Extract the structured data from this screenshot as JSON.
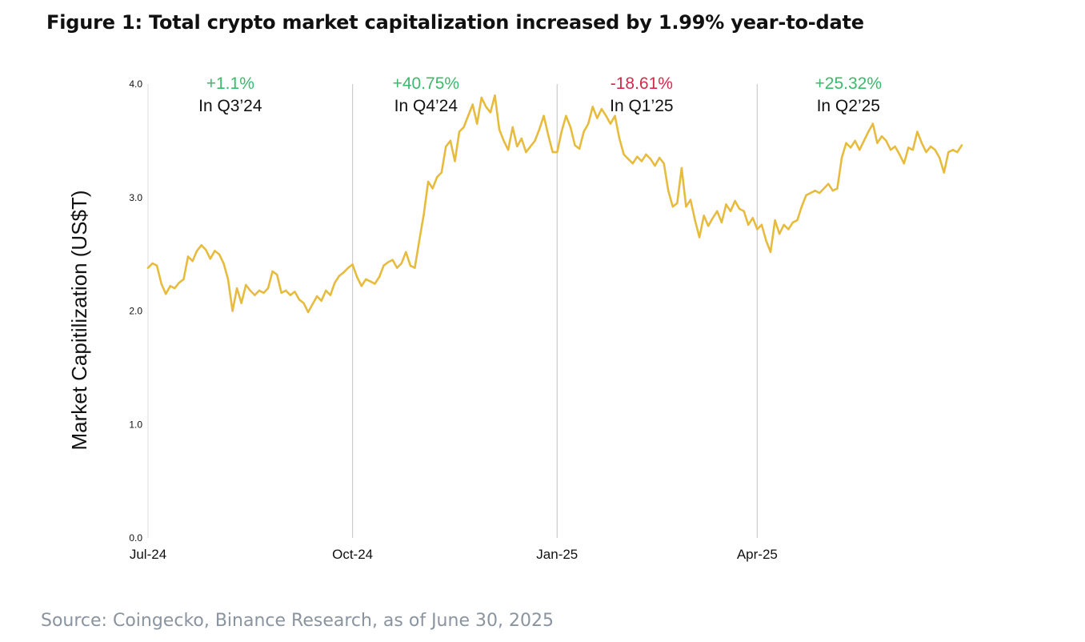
{
  "title": "Figure 1: Total crypto market capitalization increased by 1.99% year-to-date",
  "source": "Source: Coingecko, Binance Research, as of June 30, 2025",
  "colors": {
    "line": "#E7BC3E",
    "positive": "#3DB86C",
    "negative": "#D02C4A",
    "divider": "#CCCCCC",
    "text": "#111111"
  },
  "chart_data": {
    "type": "line",
    "title": "Figure 1: Total crypto market capitalization increased by 1.99% year-to-date",
    "xlabel": "",
    "ylabel": "Market Capitilization (US$T)",
    "ylim": [
      0,
      4
    ],
    "xlim": [
      0,
      183
    ],
    "yticks": [
      {
        "value": 0,
        "label": "0.0"
      },
      {
        "value": 1,
        "label": "1.0"
      },
      {
        "value": 2,
        "label": "2.0"
      },
      {
        "value": 3,
        "label": "3.0"
      },
      {
        "value": 4,
        "label": "4.0"
      }
    ],
    "xticks": [
      {
        "value": 0,
        "label": "Jul-24"
      },
      {
        "value": 46,
        "label": "Oct-24"
      },
      {
        "value": 92,
        "label": "Jan-25"
      },
      {
        "value": 137,
        "label": "Apr-25"
      }
    ],
    "dividers": [
      0,
      46,
      92,
      137
    ],
    "annotations": [
      {
        "x": 18.5,
        "change": "+1.1%",
        "quarter": "In Q3’24",
        "sign": "positive"
      },
      {
        "x": 62.5,
        "change": "+40.75%",
        "quarter": "In Q4’24",
        "sign": "positive"
      },
      {
        "x": 111,
        "change": "-18.61%",
        "quarter": "In Q1’25",
        "sign": "negative"
      },
      {
        "x": 157.5,
        "change": "+25.32%",
        "quarter": "In Q2’25",
        "sign": "positive"
      }
    ],
    "series": [
      {
        "name": "Total crypto market capitalization",
        "points": [
          [
            0,
            2.38
          ],
          [
            1,
            2.42
          ],
          [
            2,
            2.4
          ],
          [
            3,
            2.24
          ],
          [
            4,
            2.15
          ],
          [
            5,
            2.22
          ],
          [
            6,
            2.2
          ],
          [
            7,
            2.25
          ],
          [
            8,
            2.28
          ],
          [
            9,
            2.48
          ],
          [
            10,
            2.44
          ],
          [
            11,
            2.53
          ],
          [
            12,
            2.58
          ],
          [
            13,
            2.54
          ],
          [
            14,
            2.46
          ],
          [
            15,
            2.53
          ],
          [
            16,
            2.5
          ],
          [
            17,
            2.42
          ],
          [
            18,
            2.28
          ],
          [
            19,
            2.0
          ],
          [
            20,
            2.2
          ],
          [
            21,
            2.07
          ],
          [
            22,
            2.23
          ],
          [
            23,
            2.18
          ],
          [
            24,
            2.14
          ],
          [
            25,
            2.18
          ],
          [
            26,
            2.16
          ],
          [
            27,
            2.2
          ],
          [
            28,
            2.35
          ],
          [
            29,
            2.32
          ],
          [
            30,
            2.16
          ],
          [
            31,
            2.18
          ],
          [
            32,
            2.14
          ],
          [
            33,
            2.17
          ],
          [
            34,
            2.1
          ],
          [
            35,
            2.07
          ],
          [
            36,
            1.99
          ],
          [
            37,
            2.06
          ],
          [
            38,
            2.13
          ],
          [
            39,
            2.09
          ],
          [
            40,
            2.18
          ],
          [
            41,
            2.14
          ],
          [
            42,
            2.25
          ],
          [
            43,
            2.31
          ],
          [
            44,
            2.34
          ],
          [
            45,
            2.38
          ],
          [
            46,
            2.41
          ],
          [
            47,
            2.3
          ],
          [
            48,
            2.22
          ],
          [
            49,
            2.28
          ],
          [
            50,
            2.26
          ],
          [
            51,
            2.24
          ],
          [
            52,
            2.3
          ],
          [
            53,
            2.4
          ],
          [
            54,
            2.43
          ],
          [
            55,
            2.45
          ],
          [
            56,
            2.38
          ],
          [
            57,
            2.42
          ],
          [
            58,
            2.52
          ],
          [
            59,
            2.4
          ],
          [
            60,
            2.38
          ],
          [
            61,
            2.62
          ],
          [
            62,
            2.85
          ],
          [
            63,
            3.14
          ],
          [
            64,
            3.08
          ],
          [
            65,
            3.18
          ],
          [
            66,
            3.22
          ],
          [
            67,
            3.45
          ],
          [
            68,
            3.5
          ],
          [
            69,
            3.32
          ],
          [
            70,
            3.58
          ],
          [
            71,
            3.62
          ],
          [
            72,
            3.72
          ],
          [
            73,
            3.82
          ],
          [
            74,
            3.65
          ],
          [
            75,
            3.88
          ],
          [
            76,
            3.8
          ],
          [
            77,
            3.75
          ],
          [
            78,
            3.9
          ],
          [
            79,
            3.6
          ],
          [
            80,
            3.5
          ],
          [
            81,
            3.42
          ],
          [
            82,
            3.62
          ],
          [
            83,
            3.45
          ],
          [
            84,
            3.52
          ],
          [
            85,
            3.4
          ],
          [
            86,
            3.45
          ],
          [
            87,
            3.5
          ],
          [
            88,
            3.6
          ],
          [
            89,
            3.72
          ],
          [
            90,
            3.55
          ],
          [
            91,
            3.4
          ],
          [
            92,
            3.4
          ],
          [
            93,
            3.58
          ],
          [
            94,
            3.72
          ],
          [
            95,
            3.62
          ],
          [
            96,
            3.46
          ],
          [
            97,
            3.43
          ],
          [
            98,
            3.58
          ],
          [
            99,
            3.65
          ],
          [
            100,
            3.8
          ],
          [
            101,
            3.7
          ],
          [
            102,
            3.78
          ],
          [
            103,
            3.72
          ],
          [
            104,
            3.65
          ],
          [
            105,
            3.72
          ],
          [
            106,
            3.52
          ],
          [
            107,
            3.38
          ],
          [
            108,
            3.34
          ],
          [
            109,
            3.3
          ],
          [
            110,
            3.36
          ],
          [
            111,
            3.32
          ],
          [
            112,
            3.38
          ],
          [
            113,
            3.34
          ],
          [
            114,
            3.28
          ],
          [
            115,
            3.35
          ],
          [
            116,
            3.3
          ],
          [
            117,
            3.06
          ],
          [
            118,
            2.92
          ],
          [
            119,
            2.95
          ],
          [
            120,
            3.26
          ],
          [
            121,
            2.92
          ],
          [
            122,
            2.98
          ],
          [
            123,
            2.8
          ],
          [
            124,
            2.65
          ],
          [
            125,
            2.84
          ],
          [
            126,
            2.75
          ],
          [
            127,
            2.82
          ],
          [
            128,
            2.88
          ],
          [
            129,
            2.78
          ],
          [
            130,
            2.94
          ],
          [
            131,
            2.88
          ],
          [
            132,
            2.97
          ],
          [
            133,
            2.9
          ],
          [
            134,
            2.88
          ],
          [
            135,
            2.76
          ],
          [
            136,
            2.82
          ],
          [
            137,
            2.72
          ],
          [
            138,
            2.76
          ],
          [
            139,
            2.62
          ],
          [
            140,
            2.52
          ],
          [
            141,
            2.8
          ],
          [
            142,
            2.68
          ],
          [
            143,
            2.76
          ],
          [
            144,
            2.72
          ],
          [
            145,
            2.78
          ],
          [
            146,
            2.8
          ],
          [
            147,
            2.92
          ],
          [
            148,
            3.02
          ],
          [
            149,
            3.04
          ],
          [
            150,
            3.06
          ],
          [
            151,
            3.04
          ],
          [
            152,
            3.08
          ],
          [
            153,
            3.12
          ],
          [
            154,
            3.06
          ],
          [
            155,
            3.08
          ],
          [
            156,
            3.35
          ],
          [
            157,
            3.48
          ],
          [
            158,
            3.44
          ],
          [
            159,
            3.5
          ],
          [
            160,
            3.42
          ],
          [
            161,
            3.5
          ],
          [
            162,
            3.58
          ],
          [
            163,
            3.65
          ],
          [
            164,
            3.48
          ],
          [
            165,
            3.54
          ],
          [
            166,
            3.5
          ],
          [
            167,
            3.42
          ],
          [
            168,
            3.45
          ],
          [
            169,
            3.38
          ],
          [
            170,
            3.3
          ],
          [
            171,
            3.44
          ],
          [
            172,
            3.42
          ],
          [
            173,
            3.58
          ],
          [
            174,
            3.48
          ],
          [
            175,
            3.4
          ],
          [
            176,
            3.45
          ],
          [
            177,
            3.42
          ],
          [
            178,
            3.35
          ],
          [
            179,
            3.22
          ],
          [
            180,
            3.4
          ],
          [
            181,
            3.42
          ],
          [
            182,
            3.4
          ],
          [
            183,
            3.46
          ]
        ]
      }
    ]
  }
}
